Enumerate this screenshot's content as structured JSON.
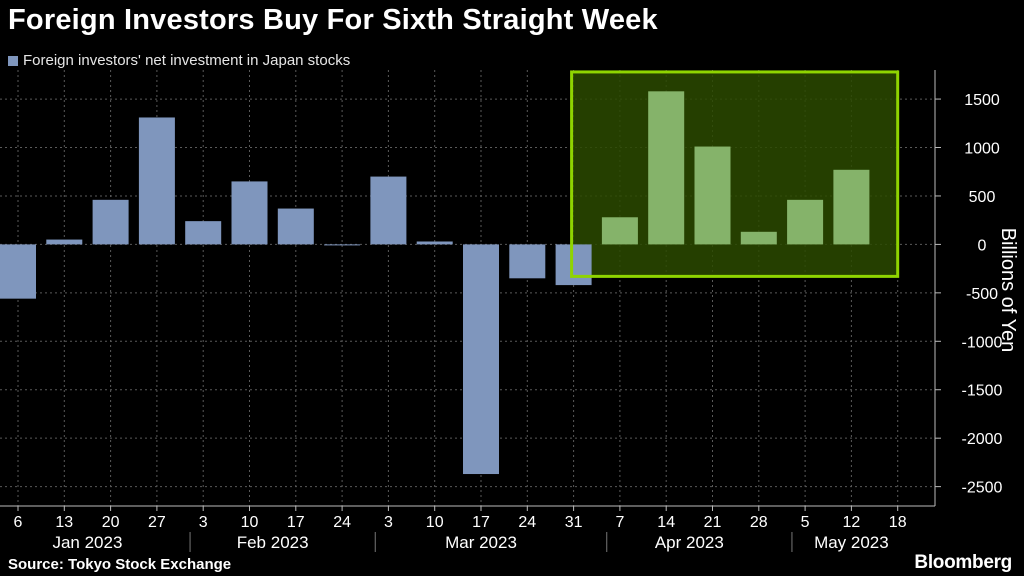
{
  "title": "Foreign Investors Buy For Sixth Straight Week",
  "legend": {
    "label": "Foreign investors' net investment in Japan stocks",
    "color": "#7f96bd"
  },
  "source": "Source: Tokyo Stock Exchange",
  "brand": "Bloomberg",
  "colors": {
    "bar": "#7f96bd",
    "highlight_bar": "#85b36a",
    "highlight_fill": "#2b4a00",
    "highlight_border": "#8fd400",
    "grid": "#5a5a5a"
  },
  "chart_data": {
    "type": "bar",
    "ylabel": "Billions of Yen",
    "ylim": [
      -2700,
      1800
    ],
    "yticks": [
      1500,
      1000,
      500,
      0,
      -500,
      -1000,
      -1500,
      -2000,
      -2500
    ],
    "y_axis_position": "right",
    "grid": true,
    "x_tick_labels": [
      "6",
      "13",
      "20",
      "27",
      "3",
      "10",
      "17",
      "24",
      "3",
      "10",
      "17",
      "24",
      "31",
      "7",
      "14",
      "21",
      "28",
      "5",
      "12",
      "18"
    ],
    "months": [
      {
        "label": "Jan 2023",
        "start": 0,
        "end": 3
      },
      {
        "label": "Feb 2023",
        "start": 4,
        "end": 7
      },
      {
        "label": "Mar 2023",
        "start": 8,
        "end": 12
      },
      {
        "label": "Apr 2023",
        "start": 13,
        "end": 16
      },
      {
        "label": "May 2023",
        "start": 17,
        "end": 19
      }
    ],
    "series": [
      {
        "name": "Foreign investors' net investment in Japan stocks",
        "values": [
          -560,
          50,
          460,
          1310,
          240,
          650,
          370,
          -10,
          700,
          30,
          -2370,
          -350,
          -420,
          280,
          1580,
          1010,
          130,
          460,
          770,
          null
        ]
      }
    ],
    "highlight": {
      "from_index": 12,
      "to_index": 19,
      "y_from": -330,
      "y_to": 1780
    }
  }
}
